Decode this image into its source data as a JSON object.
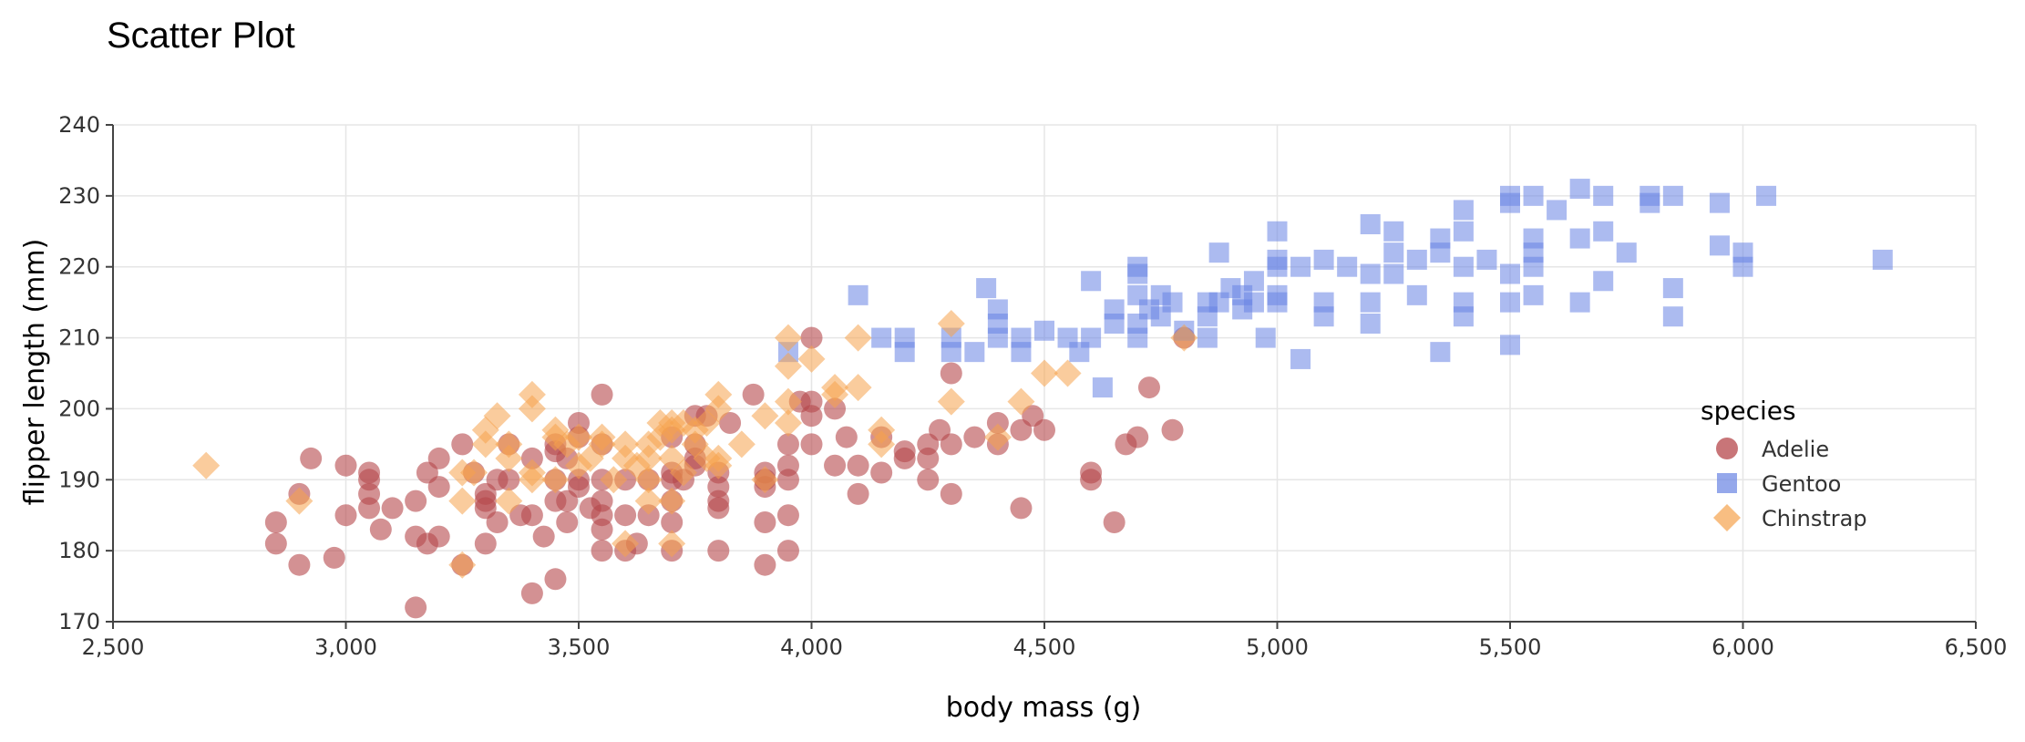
{
  "chart_data": {
    "type": "scatter",
    "title": "Scatter Plot",
    "xlabel": "body mass (g)",
    "ylabel": "flipper length (mm)",
    "xlim": [
      2500,
      6500
    ],
    "ylim": [
      170,
      240
    ],
    "xticks": [
      2500,
      3000,
      3500,
      4000,
      4500,
      5000,
      5500,
      6000,
      6500
    ],
    "xtick_labels": [
      "2,500",
      "3,000",
      "3,500",
      "4,000",
      "4,500",
      "5,000",
      "5,500",
      "6,000",
      "6,500"
    ],
    "yticks": [
      170,
      180,
      190,
      200,
      210,
      220,
      230,
      240
    ],
    "ytick_labels": [
      "170",
      "180",
      "190",
      "200",
      "210",
      "220",
      "230",
      "240"
    ],
    "grid": true,
    "legend": {
      "title": "species",
      "position": "right"
    },
    "series": [
      {
        "name": "Adelie",
        "marker": "circle",
        "color": "#b5474b",
        "opacity": 0.6,
        "points": [
          [
            2850,
            184
          ],
          [
            2850,
            181
          ],
          [
            2900,
            178
          ],
          [
            2900,
            188
          ],
          [
            2925,
            193
          ],
          [
            2975,
            179
          ],
          [
            3000,
            185
          ],
          [
            3000,
            192
          ],
          [
            3050,
            191
          ],
          [
            3050,
            190
          ],
          [
            3050,
            188
          ],
          [
            3050,
            186
          ],
          [
            3075,
            183
          ],
          [
            3100,
            186
          ],
          [
            3150,
            187
          ],
          [
            3150,
            182
          ],
          [
            3150,
            172
          ],
          [
            3175,
            181
          ],
          [
            3175,
            191
          ],
          [
            3200,
            193
          ],
          [
            3200,
            189
          ],
          [
            3200,
            182
          ],
          [
            3250,
            195
          ],
          [
            3250,
            178
          ],
          [
            3275,
            191
          ],
          [
            3300,
            188
          ],
          [
            3300,
            187
          ],
          [
            3300,
            186
          ],
          [
            3300,
            181
          ],
          [
            3325,
            190
          ],
          [
            3325,
            184
          ],
          [
            3350,
            190
          ],
          [
            3350,
            195
          ],
          [
            3375,
            185
          ],
          [
            3400,
            193
          ],
          [
            3400,
            185
          ],
          [
            3400,
            174
          ],
          [
            3425,
            182
          ],
          [
            3450,
            195
          ],
          [
            3450,
            194
          ],
          [
            3450,
            190
          ],
          [
            3450,
            187
          ],
          [
            3450,
            176
          ],
          [
            3475,
            187
          ],
          [
            3475,
            184
          ],
          [
            3475,
            193
          ],
          [
            3500,
            198
          ],
          [
            3500,
            196
          ],
          [
            3500,
            190
          ],
          [
            3500,
            189
          ],
          [
            3525,
            186
          ],
          [
            3550,
            202
          ],
          [
            3550,
            195
          ],
          [
            3550,
            190
          ],
          [
            3550,
            187
          ],
          [
            3550,
            185
          ],
          [
            3550,
            183
          ],
          [
            3550,
            180
          ],
          [
            3600,
            190
          ],
          [
            3600,
            185
          ],
          [
            3600,
            180
          ],
          [
            3625,
            181
          ],
          [
            3650,
            190
          ],
          [
            3650,
            185
          ],
          [
            3700,
            196
          ],
          [
            3700,
            191
          ],
          [
            3700,
            190
          ],
          [
            3700,
            187
          ],
          [
            3700,
            184
          ],
          [
            3700,
            180
          ],
          [
            3725,
            190
          ],
          [
            3750,
            199
          ],
          [
            3750,
            195
          ],
          [
            3750,
            193
          ],
          [
            3750,
            192
          ],
          [
            3775,
            199
          ],
          [
            3800,
            191
          ],
          [
            3800,
            189
          ],
          [
            3800,
            187
          ],
          [
            3800,
            186
          ],
          [
            3800,
            180
          ],
          [
            3825,
            198
          ],
          [
            3875,
            202
          ],
          [
            3900,
            191
          ],
          [
            3900,
            190
          ],
          [
            3900,
            189
          ],
          [
            3900,
            184
          ],
          [
            3900,
            178
          ],
          [
            3950,
            195
          ],
          [
            3950,
            192
          ],
          [
            3950,
            190
          ],
          [
            3950,
            185
          ],
          [
            3950,
            180
          ],
          [
            3975,
            201
          ],
          [
            4000,
            210
          ],
          [
            4000,
            201
          ],
          [
            4000,
            199
          ],
          [
            4000,
            195
          ],
          [
            4050,
            192
          ],
          [
            4050,
            200
          ],
          [
            4075,
            196
          ],
          [
            4100,
            192
          ],
          [
            4100,
            188
          ],
          [
            4150,
            191
          ],
          [
            4150,
            196
          ],
          [
            4200,
            194
          ],
          [
            4200,
            193
          ],
          [
            4250,
            195
          ],
          [
            4250,
            193
          ],
          [
            4250,
            190
          ],
          [
            4275,
            197
          ],
          [
            4300,
            205
          ],
          [
            4300,
            195
          ],
          [
            4300,
            188
          ],
          [
            4350,
            196
          ],
          [
            4400,
            198
          ],
          [
            4400,
            195
          ],
          [
            4450,
            197
          ],
          [
            4450,
            186
          ],
          [
            4475,
            199
          ],
          [
            4500,
            197
          ],
          [
            4600,
            191
          ],
          [
            4600,
            190
          ],
          [
            4650,
            184
          ],
          [
            4675,
            195
          ],
          [
            4700,
            196
          ],
          [
            4725,
            203
          ],
          [
            4775,
            197
          ],
          [
            4800,
            210
          ]
        ]
      },
      {
        "name": "Gentoo",
        "marker": "square",
        "color": "#6883e3",
        "opacity": 0.55,
        "points": [
          [
            3950,
            208
          ],
          [
            4100,
            216
          ],
          [
            4150,
            210
          ],
          [
            4200,
            210
          ],
          [
            4200,
            208
          ],
          [
            4300,
            210
          ],
          [
            4300,
            208
          ],
          [
            4350,
            208
          ],
          [
            4375,
            217
          ],
          [
            4400,
            214
          ],
          [
            4400,
            212
          ],
          [
            4400,
            210
          ],
          [
            4450,
            210
          ],
          [
            4450,
            208
          ],
          [
            4500,
            211
          ],
          [
            4550,
            210
          ],
          [
            4575,
            208
          ],
          [
            4600,
            218
          ],
          [
            4600,
            210
          ],
          [
            4625,
            203
          ],
          [
            4650,
            214
          ],
          [
            4650,
            212
          ],
          [
            4700,
            220
          ],
          [
            4700,
            219
          ],
          [
            4700,
            216
          ],
          [
            4700,
            212
          ],
          [
            4700,
            210
          ],
          [
            4725,
            214
          ],
          [
            4750,
            216
          ],
          [
            4750,
            213
          ],
          [
            4775,
            215
          ],
          [
            4800,
            211
          ],
          [
            4850,
            215
          ],
          [
            4850,
            213
          ],
          [
            4850,
            210
          ],
          [
            4875,
            222
          ],
          [
            4875,
            215
          ],
          [
            4900,
            217
          ],
          [
            4925,
            214
          ],
          [
            4925,
            216
          ],
          [
            4950,
            215
          ],
          [
            4950,
            218
          ],
          [
            4975,
            210
          ],
          [
            5000,
            225
          ],
          [
            5000,
            221
          ],
          [
            5000,
            220
          ],
          [
            5000,
            216
          ],
          [
            5000,
            215
          ],
          [
            5050,
            220
          ],
          [
            5050,
            207
          ],
          [
            5100,
            221
          ],
          [
            5100,
            215
          ],
          [
            5100,
            213
          ],
          [
            5150,
            220
          ],
          [
            5200,
            226
          ],
          [
            5200,
            219
          ],
          [
            5200,
            215
          ],
          [
            5200,
            212
          ],
          [
            5250,
            225
          ],
          [
            5250,
            222
          ],
          [
            5250,
            219
          ],
          [
            5300,
            221
          ],
          [
            5300,
            216
          ],
          [
            5350,
            224
          ],
          [
            5350,
            222
          ],
          [
            5350,
            208
          ],
          [
            5400,
            228
          ],
          [
            5400,
            225
          ],
          [
            5400,
            220
          ],
          [
            5400,
            215
          ],
          [
            5400,
            213
          ],
          [
            5450,
            221
          ],
          [
            5500,
            230
          ],
          [
            5500,
            229
          ],
          [
            5500,
            219
          ],
          [
            5500,
            215
          ],
          [
            5500,
            209
          ],
          [
            5550,
            230
          ],
          [
            5550,
            224
          ],
          [
            5550,
            222
          ],
          [
            5550,
            220
          ],
          [
            5550,
            216
          ],
          [
            5600,
            228
          ],
          [
            5650,
            231
          ],
          [
            5650,
            224
          ],
          [
            5650,
            215
          ],
          [
            5700,
            230
          ],
          [
            5700,
            225
          ],
          [
            5700,
            218
          ],
          [
            5750,
            222
          ],
          [
            5800,
            230
          ],
          [
            5800,
            229
          ],
          [
            5850,
            230
          ],
          [
            5850,
            217
          ],
          [
            5850,
            213
          ],
          [
            5950,
            229
          ],
          [
            5950,
            223
          ],
          [
            6000,
            222
          ],
          [
            6000,
            220
          ],
          [
            6050,
            230
          ],
          [
            6300,
            221
          ]
        ]
      },
      {
        "name": "Chinstrap",
        "marker": "diamond",
        "color": "#f5a34d",
        "opacity": 0.55,
        "points": [
          [
            2700,
            192
          ],
          [
            2900,
            187
          ],
          [
            3250,
            191
          ],
          [
            3250,
            187
          ],
          [
            3250,
            178
          ],
          [
            3275,
            191
          ],
          [
            3300,
            197
          ],
          [
            3300,
            195
          ],
          [
            3325,
            199
          ],
          [
            3350,
            195
          ],
          [
            3350,
            193
          ],
          [
            3350,
            187
          ],
          [
            3400,
            202
          ],
          [
            3400,
            200
          ],
          [
            3400,
            191
          ],
          [
            3400,
            190
          ],
          [
            3450,
            197
          ],
          [
            3450,
            196
          ],
          [
            3450,
            190
          ],
          [
            3475,
            195
          ],
          [
            3500,
            196
          ],
          [
            3500,
            192
          ],
          [
            3525,
            193
          ],
          [
            3550,
            196
          ],
          [
            3550,
            195
          ],
          [
            3575,
            190
          ],
          [
            3600,
            195
          ],
          [
            3600,
            193
          ],
          [
            3600,
            181
          ],
          [
            3625,
            192
          ],
          [
            3650,
            195
          ],
          [
            3650,
            193
          ],
          [
            3650,
            190
          ],
          [
            3650,
            187
          ],
          [
            3675,
            198
          ],
          [
            3675,
            196
          ],
          [
            3700,
            198
          ],
          [
            3700,
            197
          ],
          [
            3700,
            193
          ],
          [
            3700,
            187
          ],
          [
            3700,
            181
          ],
          [
            3725,
            198
          ],
          [
            3725,
            191
          ],
          [
            3750,
            197
          ],
          [
            3750,
            195
          ],
          [
            3775,
            198
          ],
          [
            3775,
            193
          ],
          [
            3800,
            202
          ],
          [
            3800,
            200
          ],
          [
            3800,
            193
          ],
          [
            3800,
            192
          ],
          [
            3850,
            195
          ],
          [
            3900,
            199
          ],
          [
            3900,
            190
          ],
          [
            3950,
            210
          ],
          [
            3950,
            206
          ],
          [
            3950,
            201
          ],
          [
            3950,
            198
          ],
          [
            4000,
            207
          ],
          [
            4050,
            203
          ],
          [
            4050,
            202
          ],
          [
            4100,
            210
          ],
          [
            4100,
            203
          ],
          [
            4150,
            197
          ],
          [
            4150,
            195
          ],
          [
            4300,
            212
          ],
          [
            4300,
            201
          ],
          [
            4400,
            196
          ],
          [
            4450,
            201
          ],
          [
            4500,
            205
          ],
          [
            4550,
            205
          ],
          [
            4800,
            210
          ]
        ]
      }
    ]
  }
}
